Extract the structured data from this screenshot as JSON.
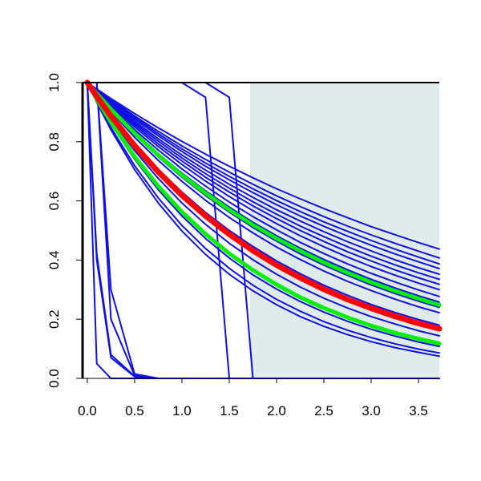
{
  "chart_data": {
    "type": "line",
    "title": "",
    "xlabel": "",
    "ylabel": "",
    "xlim": [
      -0.05,
      3.72
    ],
    "ylim": [
      0.0,
      1.0
    ],
    "x_ticks": [
      "0.0",
      "0.5",
      "1.0",
      "1.5",
      "2.0",
      "2.5",
      "3.0",
      "3.5"
    ],
    "y_ticks": [
      "0.0",
      "0.2",
      "0.4",
      "0.6",
      "0.8",
      "1.0"
    ],
    "grid": false,
    "legend": "none",
    "shaded_region": {
      "x_from": 1.72,
      "x_to": 3.72,
      "color": "#e0ecec"
    },
    "colors": {
      "individual": "#1010e0",
      "mean": "#ff0000",
      "band": "#00ee00",
      "axis": "#000000"
    },
    "x_samples": [
      0.0,
      0.1,
      0.25,
      0.5,
      0.75,
      1.0,
      1.25,
      1.5,
      1.75,
      2.0,
      2.25,
      2.5,
      2.75,
      3.0,
      3.25,
      3.5,
      3.72
    ],
    "series": [
      {
        "group": "individual",
        "values": [
          1.0,
          0.978,
          0.946,
          0.895,
          0.847,
          0.801,
          0.758,
          0.717,
          0.678,
          0.641,
          0.607,
          0.574,
          0.543,
          0.513,
          0.486,
          0.459,
          0.437
        ]
      },
      {
        "group": "individual",
        "values": [
          1.0,
          0.976,
          0.942,
          0.887,
          0.835,
          0.786,
          0.74,
          0.697,
          0.656,
          0.617,
          0.581,
          0.547,
          0.515,
          0.485,
          0.457,
          0.43,
          0.407
        ]
      },
      {
        "group": "individual",
        "values": [
          1.0,
          0.975,
          0.939,
          0.882,
          0.827,
          0.776,
          0.728,
          0.683,
          0.641,
          0.601,
          0.564,
          0.529,
          0.497,
          0.466,
          0.437,
          0.41,
          0.387
        ]
      },
      {
        "group": "individual",
        "values": [
          1.0,
          0.974,
          0.936,
          0.876,
          0.82,
          0.767,
          0.717,
          0.671,
          0.628,
          0.587,
          0.549,
          0.514,
          0.481,
          0.45,
          0.421,
          0.394,
          0.371
        ]
      },
      {
        "group": "individual",
        "values": [
          1.0,
          0.973,
          0.932,
          0.869,
          0.81,
          0.755,
          0.704,
          0.656,
          0.612,
          0.57,
          0.532,
          0.496,
          0.462,
          0.431,
          0.401,
          0.374,
          0.352
        ]
      },
      {
        "group": "individual",
        "values": [
          1.0,
          0.971,
          0.929,
          0.863,
          0.802,
          0.745,
          0.692,
          0.643,
          0.597,
          0.555,
          0.515,
          0.479,
          0.445,
          0.413,
          0.384,
          0.357,
          0.335
        ]
      },
      {
        "group": "individual",
        "values": [
          1.0,
          0.97,
          0.926,
          0.857,
          0.793,
          0.735,
          0.68,
          0.63,
          0.583,
          0.54,
          0.5,
          0.463,
          0.428,
          0.397,
          0.367,
          0.34,
          0.318
        ]
      },
      {
        "group": "individual",
        "values": [
          1.0,
          0.968,
          0.922,
          0.85,
          0.784,
          0.723,
          0.667,
          0.615,
          0.567,
          0.523,
          0.482,
          0.445,
          0.41,
          0.378,
          0.349,
          0.322,
          0.3
        ]
      },
      {
        "group": "individual",
        "values": [
          1.0,
          0.966,
          0.917,
          0.841,
          0.772,
          0.708,
          0.65,
          0.596,
          0.547,
          0.502,
          0.46,
          0.422,
          0.387,
          0.355,
          0.326,
          0.299,
          0.277
        ]
      },
      {
        "group": "individual",
        "values": [
          1.0,
          0.964,
          0.912,
          0.833,
          0.76,
          0.694,
          0.634,
          0.579,
          0.528,
          0.482,
          0.44,
          0.402,
          0.367,
          0.335,
          0.306,
          0.279,
          0.258
        ]
      },
      {
        "group": "individual",
        "values": [
          1.0,
          0.962,
          0.907,
          0.824,
          0.749,
          0.68,
          0.618,
          0.562,
          0.51,
          0.464,
          0.421,
          0.383,
          0.348,
          0.316,
          0.287,
          0.261,
          0.24
        ]
      },
      {
        "group": "individual",
        "values": [
          1.0,
          0.96,
          0.903,
          0.815,
          0.737,
          0.666,
          0.602,
          0.544,
          0.492,
          0.444,
          0.402,
          0.363,
          0.328,
          0.297,
          0.268,
          0.242,
          0.222
        ]
      },
      {
        "group": "individual",
        "values": [
          1.0,
          0.955,
          0.89,
          0.793,
          0.707,
          0.63,
          0.561,
          0.5,
          0.446,
          0.397,
          0.354,
          0.315,
          0.281,
          0.25,
          0.223,
          0.199,
          0.18
        ]
      },
      {
        "group": "individual",
        "values": [
          1.0,
          0.949,
          0.877,
          0.77,
          0.676,
          0.593,
          0.521,
          0.457,
          0.401,
          0.352,
          0.309,
          0.271,
          0.238,
          0.209,
          0.184,
          0.161,
          0.144
        ]
      },
      {
        "group": "individual",
        "values": [
          1.0,
          0.941,
          0.86,
          0.741,
          0.638,
          0.549,
          0.473,
          0.407,
          0.35,
          0.302,
          0.26,
          0.224,
          0.193,
          0.166,
          0.143,
          0.123,
          0.108
        ]
      },
      {
        "group": "individual",
        "values": [
          1.0,
          0.936,
          0.848,
          0.719,
          0.61,
          0.517,
          0.439,
          0.372,
          0.315,
          0.267,
          0.227,
          0.192,
          0.163,
          0.138,
          0.117,
          0.099,
          0.086
        ]
      },
      {
        "group": "individual",
        "values": [
          1.0,
          0.933,
          0.84,
          0.706,
          0.593,
          0.498,
          0.419,
          0.352,
          0.296,
          0.249,
          0.209,
          0.176,
          0.148,
          0.124,
          0.104,
          0.088,
          0.075
        ]
      },
      {
        "group": "individual",
        "values": [
          1.0,
          0.4,
          0.07,
          0.006,
          0.0,
          0.0,
          0.0,
          0.0,
          0.0,
          0.0,
          0.0,
          0.0,
          0.0,
          0.0,
          0.0,
          0.0,
          0.0
        ]
      },
      {
        "group": "individual",
        "values": [
          1.0,
          0.42,
          0.08,
          0.007,
          0.0,
          0.0,
          0.0,
          0.0,
          0.0,
          0.0,
          0.0,
          0.0,
          0.0,
          0.0,
          0.0,
          0.0,
          0.0
        ]
      },
      {
        "group": "individual",
        "values": [
          1.0,
          1.0,
          0.2,
          0.01,
          0.0,
          0.0,
          0.0,
          0.0,
          0.0,
          0.0,
          0.0,
          0.0,
          0.0,
          0.0,
          0.0,
          0.0,
          0.0
        ]
      },
      {
        "group": "individual",
        "values": [
          1.0,
          1.0,
          0.3,
          0.015,
          0.0,
          0.0,
          0.0,
          0.0,
          0.0,
          0.0,
          0.0,
          0.0,
          0.0,
          0.0,
          0.0,
          0.0,
          0.0
        ]
      },
      {
        "group": "individual",
        "values": [
          1.0,
          0.05,
          0.0,
          0.0,
          0.0,
          0.0,
          0.0,
          0.0,
          0.0,
          0.0,
          0.0,
          0.0,
          0.0,
          0.0,
          0.0,
          0.0,
          0.0
        ]
      },
      {
        "group": "individual",
        "values": [
          1.0,
          1.0,
          1.0,
          1.0,
          1.0,
          1.0,
          0.95,
          0.0,
          0.0,
          0.0,
          0.0,
          0.0,
          0.0,
          0.0,
          0.0,
          0.0,
          0.0
        ]
      },
      {
        "group": "individual",
        "values": [
          1.0,
          1.0,
          1.0,
          1.0,
          1.0,
          1.0,
          1.0,
          0.95,
          0.0,
          0.0,
          0.0,
          0.0,
          0.0,
          0.0,
          0.0,
          0.0,
          0.0
        ]
      },
      {
        "group": "band",
        "values": [
          1.0,
          0.963,
          0.91,
          0.829,
          0.755,
          0.687,
          0.626,
          0.57,
          0.519,
          0.473,
          0.431,
          0.392,
          0.357,
          0.325,
          0.296,
          0.27,
          0.248
        ]
      },
      {
        "group": "band",
        "values": [
          1.0,
          0.944,
          0.866,
          0.75,
          0.65,
          0.563,
          0.488,
          0.422,
          0.366,
          0.317,
          0.274,
          0.238,
          0.206,
          0.178,
          0.154,
          0.134,
          0.118
        ]
      },
      {
        "group": "mean",
        "values": [
          1.0,
          0.953,
          0.887,
          0.787,
          0.698,
          0.619,
          0.549,
          0.487,
          0.432,
          0.383,
          0.34,
          0.301,
          0.267,
          0.237,
          0.21,
          0.186,
          0.168
        ]
      }
    ]
  }
}
